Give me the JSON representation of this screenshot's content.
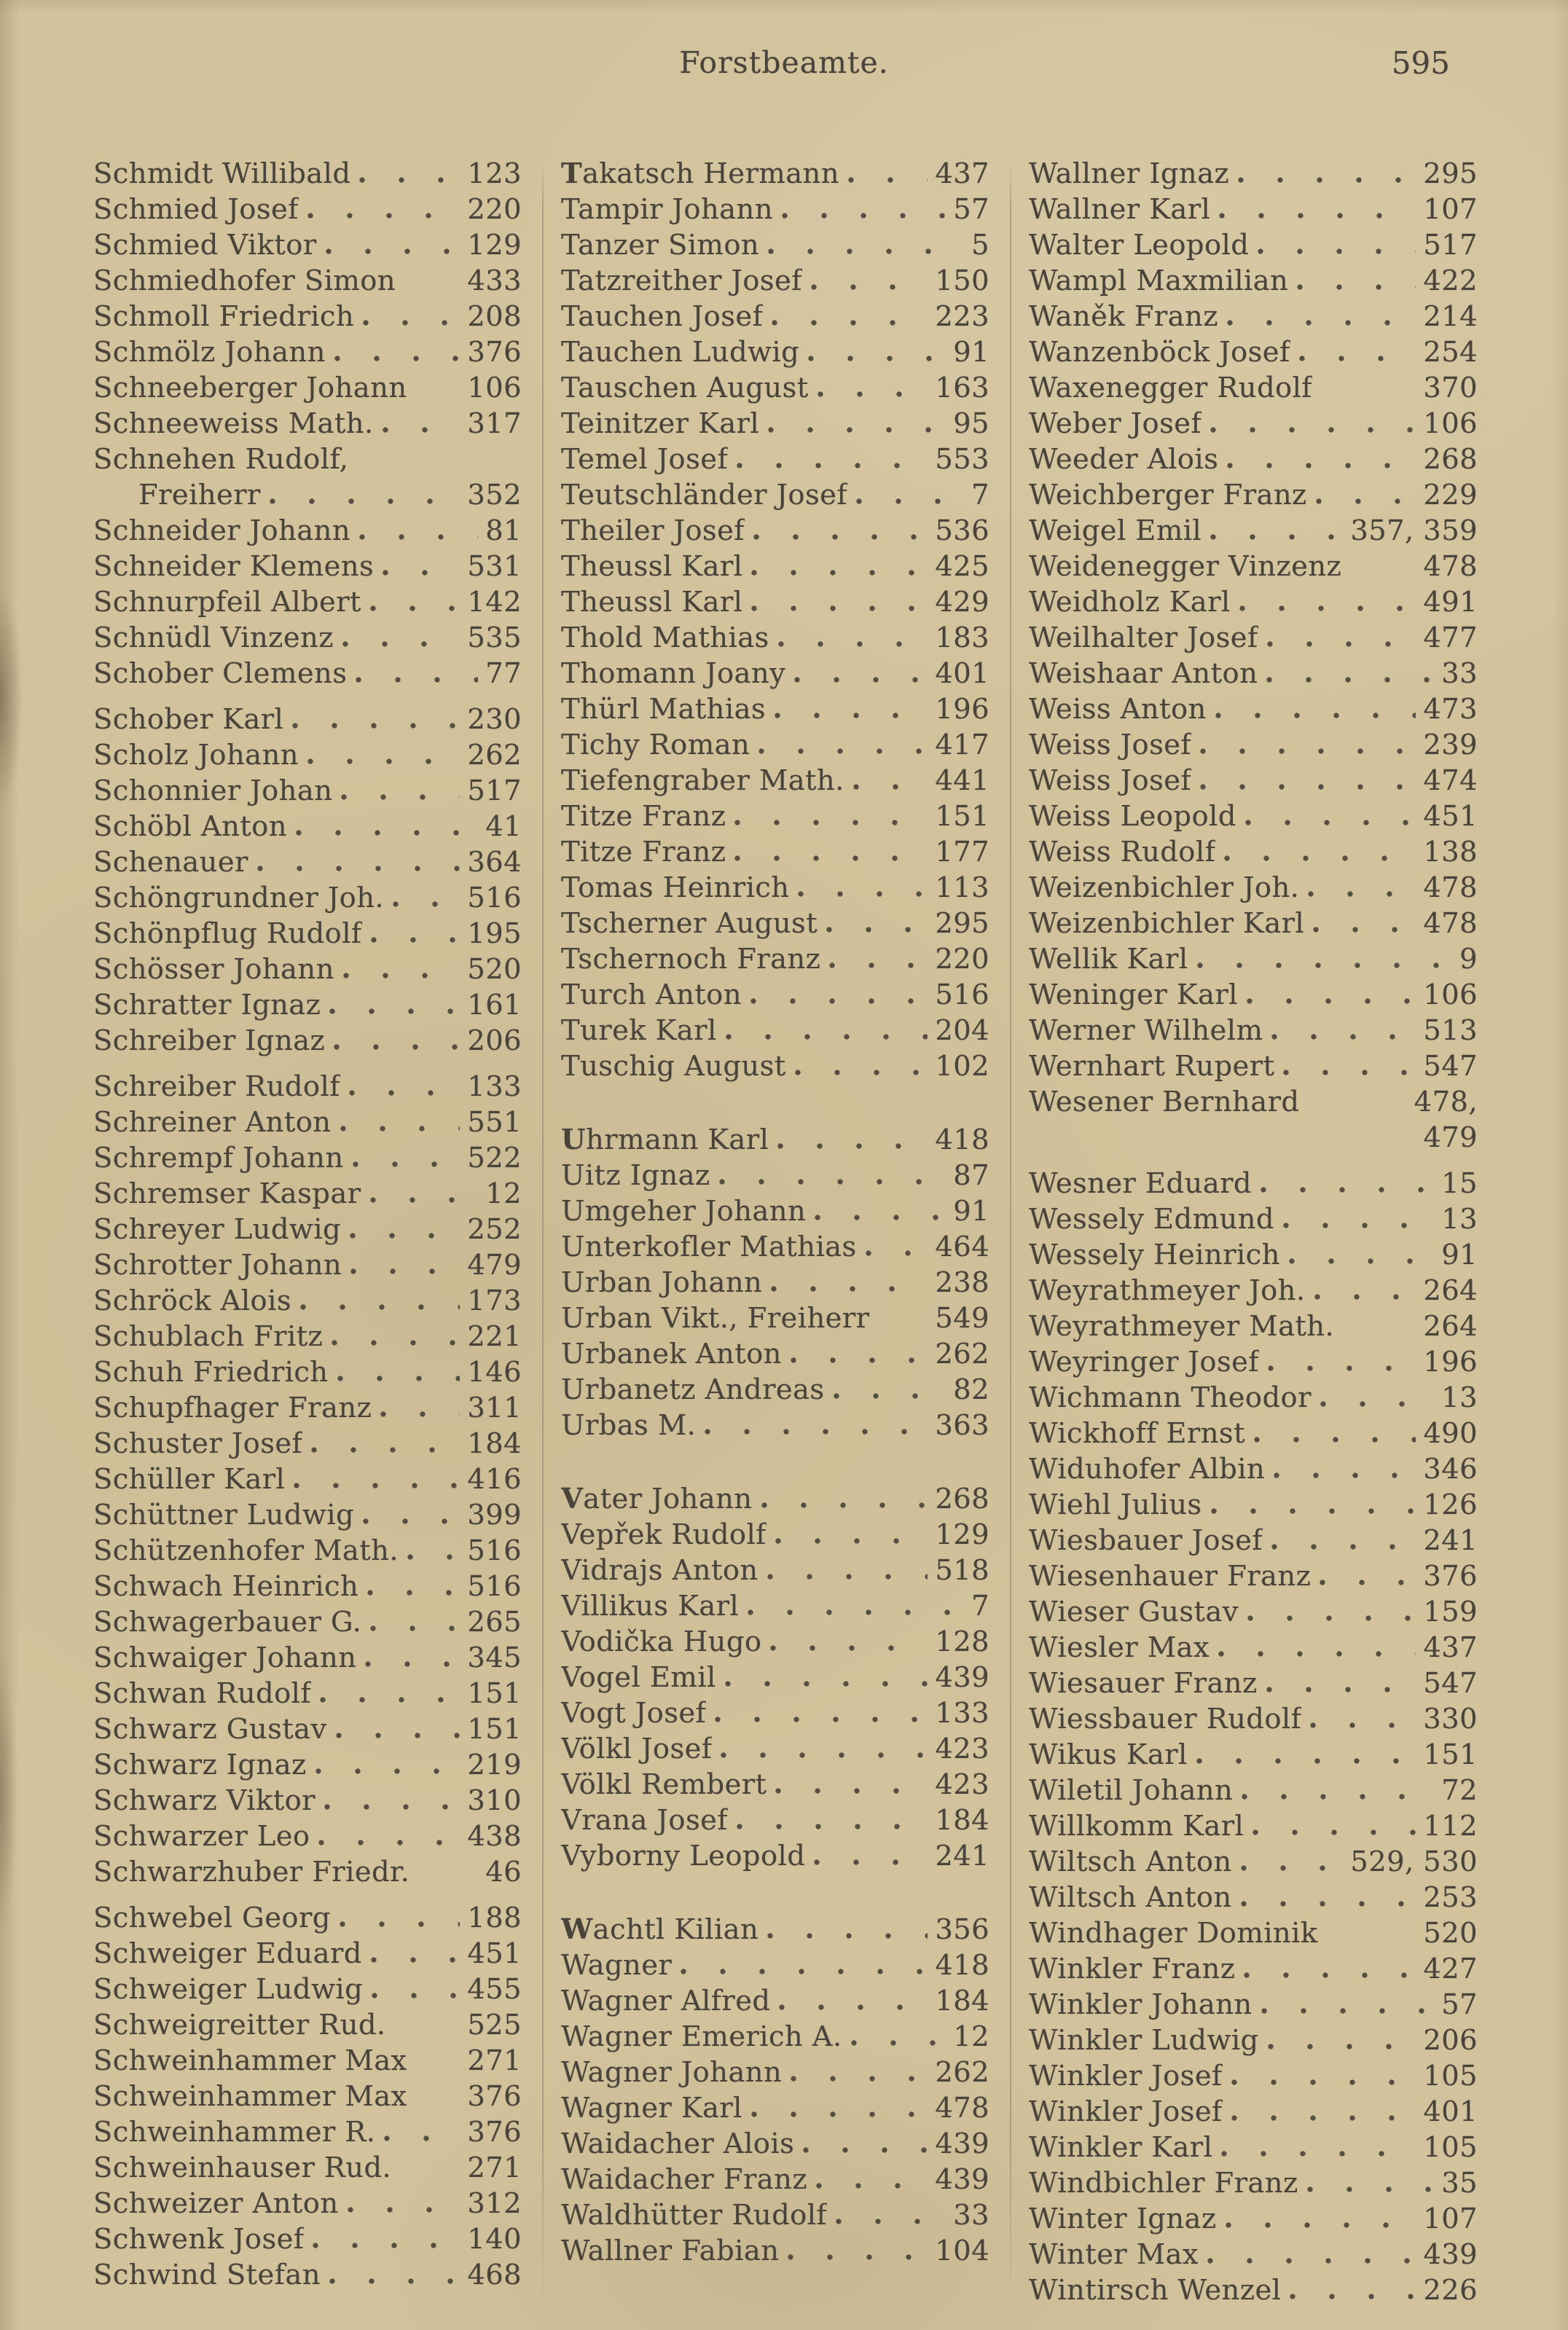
{
  "header": {
    "title": "Forstbeamte.",
    "page_number": "595"
  },
  "colors": {
    "paper": "#d2c39c",
    "ink": "#49443b",
    "divider": "#8d8168"
  },
  "columns": [
    {
      "entries": [
        {
          "name": "Schmidt Willibald",
          "page": "123"
        },
        {
          "name": "Schmied Josef",
          "page": "220"
        },
        {
          "name": "Schmied Viktor",
          "page": "129"
        },
        {
          "name": "Schmiedhofer Simon",
          "page": "433",
          "no_leader": true
        },
        {
          "name": "Schmoll Friedrich",
          "page": "208"
        },
        {
          "name": "Schmölz Johann",
          "page": "376"
        },
        {
          "name": "Schneeberger Johann",
          "page": "106",
          "no_leader": true
        },
        {
          "name": "Schneeweiss Math.",
          "page": "317"
        },
        {
          "name": "Schnehen Rudolf,",
          "page": "",
          "no_leader": true
        },
        {
          "name": "Freiherr",
          "page": "352",
          "indent": true
        },
        {
          "name": "Schneider Johann",
          "page": "81"
        },
        {
          "name": "Schneider Klemens",
          "page": "531"
        },
        {
          "name": "Schnurpfeil Albert",
          "page": "142"
        },
        {
          "name": "Schnüdl Vinzenz",
          "page": "535"
        },
        {
          "name": "Schober Clemens",
          "page": "77"
        },
        {
          "name": "Schober Karl",
          "page": "230",
          "gap": "small"
        },
        {
          "name": "Scholz Johann",
          "page": "262"
        },
        {
          "name": "Schonnier Johan",
          "page": "517"
        },
        {
          "name": "Schöbl Anton",
          "page": "41"
        },
        {
          "name": "Schenauer",
          "page": "364"
        },
        {
          "name": "Schöngrundner Joh.",
          "page": "516"
        },
        {
          "name": "Schönpflug Rudolf",
          "page": "195"
        },
        {
          "name": "Schösser Johann",
          "page": "520"
        },
        {
          "name": "Schratter Ignaz",
          "page": "161"
        },
        {
          "name": "Schreiber Ignaz",
          "page": "206"
        },
        {
          "name": "Schreiber Rudolf",
          "page": "133",
          "gap": "small"
        },
        {
          "name": "Schreiner Anton",
          "page": "551"
        },
        {
          "name": "Schrempf Johann",
          "page": "522"
        },
        {
          "name": "Schremser Kaspar",
          "page": "12"
        },
        {
          "name": "Schreyer Ludwig",
          "page": "252"
        },
        {
          "name": "Schrotter Johann",
          "page": "479"
        },
        {
          "name": "Schröck Alois",
          "page": "173"
        },
        {
          "name": "Schublach Fritz",
          "page": "221"
        },
        {
          "name": "Schuh Friedrich",
          "page": "146"
        },
        {
          "name": "Schupfhager Franz",
          "page": "311"
        },
        {
          "name": "Schuster Josef",
          "page": "184"
        },
        {
          "name": "Schüller Karl",
          "page": "416"
        },
        {
          "name": "Schüttner Ludwig",
          "page": "399"
        },
        {
          "name": "Schützenhofer Math.",
          "page": "516"
        },
        {
          "name": "Schwach Heinrich",
          "page": "516"
        },
        {
          "name": "Schwagerbauer G.",
          "page": "265"
        },
        {
          "name": "Schwaiger Johann",
          "page": "345"
        },
        {
          "name": "Schwan Rudolf",
          "page": "151"
        },
        {
          "name": "Schwarz Gustav",
          "page": "151"
        },
        {
          "name": "Schwarz Ignaz",
          "page": "219"
        },
        {
          "name": "Schwarz Viktor",
          "page": "310"
        },
        {
          "name": "Schwarzer Leo",
          "page": "438"
        },
        {
          "name": "Schwarzhuber Friedr.",
          "page": "46",
          "no_leader": true
        },
        {
          "name": "Schwebel Georg",
          "page": "188",
          "gap": "small"
        },
        {
          "name": "Schweiger Eduard",
          "page": "451"
        },
        {
          "name": "Schweiger Ludwig",
          "page": "455"
        },
        {
          "name": "Schweigreitter Rud.",
          "page": "525",
          "no_leader": true
        },
        {
          "name": "Schweinhammer Max",
          "page": "271",
          "no_leader": true
        },
        {
          "name": "Schweinhammer Max",
          "page": "376",
          "no_leader": true
        },
        {
          "name": "Schweinhammer R.",
          "page": "376"
        },
        {
          "name": "Schweinhauser Rud.",
          "page": "271",
          "no_leader": true
        },
        {
          "name": "Schweizer Anton",
          "page": "312"
        },
        {
          "name": "Schwenk Josef",
          "page": "140"
        },
        {
          "name": "Schwind Stefan",
          "page": "468"
        }
      ]
    },
    {
      "entries": [
        {
          "name": "Takatsch Hermann",
          "page": "437",
          "bold_initial": true
        },
        {
          "name": "Tampir Johann",
          "page": "57"
        },
        {
          "name": "Tanzer Simon",
          "page": "5"
        },
        {
          "name": "Tatzreither Josef",
          "page": "150"
        },
        {
          "name": "Tauchen Josef",
          "page": "223"
        },
        {
          "name": "Tauchen Ludwig",
          "page": "91"
        },
        {
          "name": "Tauschen August",
          "page": "163"
        },
        {
          "name": "Teinitzer Karl",
          "page": "95"
        },
        {
          "name": "Temel Josef",
          "page": "553"
        },
        {
          "name": "Teutschländer Josef",
          "page": "7"
        },
        {
          "name": "Theiler Josef",
          "page": "536"
        },
        {
          "name": "Theussl Karl",
          "page": "425"
        },
        {
          "name": "Theussl Karl",
          "page": "429"
        },
        {
          "name": "Thold Mathias",
          "page": "183"
        },
        {
          "name": "Thomann Joany",
          "page": "401"
        },
        {
          "name": "Thürl Mathias",
          "page": "196"
        },
        {
          "name": "Tichy Roman",
          "page": "417"
        },
        {
          "name": "Tiefengraber Math.",
          "page": "441"
        },
        {
          "name": "Titze Franz",
          "page": "151"
        },
        {
          "name": "Titze Franz",
          "page": "177"
        },
        {
          "name": "Tomas Heinrich",
          "page": "113"
        },
        {
          "name": "Tscherner August",
          "page": "295"
        },
        {
          "name": "Tschernoch Franz",
          "page": "220"
        },
        {
          "name": "Turch Anton",
          "page": "516"
        },
        {
          "name": "Turek Karl",
          "page": "204"
        },
        {
          "name": "Tuschig August",
          "page": "102"
        },
        {
          "name": "Uhrmann Karl",
          "page": "418",
          "bold_initial": true,
          "gap": "large"
        },
        {
          "name": "Uitz Ignaz",
          "page": "87"
        },
        {
          "name": "Umgeher Johann",
          "page": "91"
        },
        {
          "name": "Unterkofler Mathias",
          "page": "464"
        },
        {
          "name": "Urban Johann",
          "page": "238"
        },
        {
          "name": "Urban Vikt., Freiherr",
          "page": "549",
          "no_leader": true
        },
        {
          "name": "Urbanek Anton",
          "page": "262"
        },
        {
          "name": "Urbanetz Andreas",
          "page": "82"
        },
        {
          "name": "Urbas M.",
          "page": "363"
        },
        {
          "name": "Vater Johann",
          "page": "268",
          "bold_initial": true,
          "gap": "large"
        },
        {
          "name": "Vepřek Rudolf",
          "page": "129"
        },
        {
          "name": "Vidrajs Anton",
          "page": "518"
        },
        {
          "name": "Villikus Karl",
          "page": "7"
        },
        {
          "name": "Vodička Hugo",
          "page": "128"
        },
        {
          "name": "Vogel Emil",
          "page": "439"
        },
        {
          "name": "Vogt Josef",
          "page": "133"
        },
        {
          "name": "Völkl Josef",
          "page": "423"
        },
        {
          "name": "Völkl Rembert",
          "page": "423"
        },
        {
          "name": "Vrana Josef",
          "page": "184"
        },
        {
          "name": "Vyborny Leopold",
          "page": "241"
        },
        {
          "name": "Wachtl Kilian",
          "page": "356",
          "bold_initial": true,
          "gap": "large"
        },
        {
          "name": "Wagner",
          "page": "418"
        },
        {
          "name": "Wagner Alfred",
          "page": "184"
        },
        {
          "name": "Wagner Emerich A.",
          "page": "12"
        },
        {
          "name": "Wagner Johann",
          "page": "262"
        },
        {
          "name": "Wagner Karl",
          "page": "478"
        },
        {
          "name": "Waidacher Alois",
          "page": "439"
        },
        {
          "name": "Waidacher Franz",
          "page": "439"
        },
        {
          "name": "Waldhütter Rudolf",
          "page": "33"
        },
        {
          "name": "Wallner Fabian",
          "page": "104"
        }
      ]
    },
    {
      "entries": [
        {
          "name": "Wallner Ignaz",
          "page": "295"
        },
        {
          "name": "Wallner Karl",
          "page": "107"
        },
        {
          "name": "Walter Leopold",
          "page": "517"
        },
        {
          "name": "Wampl Maxmilian",
          "page": "422"
        },
        {
          "name": "Waněk Franz",
          "page": "214"
        },
        {
          "name": "Wanzenböck Josef",
          "page": "254"
        },
        {
          "name": "Waxenegger Rudolf",
          "page": "370",
          "no_leader": true
        },
        {
          "name": "Weber Josef",
          "page": "106"
        },
        {
          "name": "Weeder Alois",
          "page": "268"
        },
        {
          "name": "Weichberger Franz",
          "page": "229"
        },
        {
          "name": "Weigel Emil",
          "page": "357, 359"
        },
        {
          "name": "Weidenegger Vinzenz",
          "page": "478",
          "no_leader": true
        },
        {
          "name": "Weidholz Karl",
          "page": "491"
        },
        {
          "name": "Weilhalter Josef",
          "page": "477"
        },
        {
          "name": "Weishaar Anton",
          "page": "33"
        },
        {
          "name": "Weiss Anton",
          "page": "473"
        },
        {
          "name": "Weiss Josef",
          "page": "239"
        },
        {
          "name": "Weiss Josef",
          "page": "474"
        },
        {
          "name": "Weiss Leopold",
          "page": "451"
        },
        {
          "name": "Weiss Rudolf",
          "page": "138"
        },
        {
          "name": "Weizenbichler Joh.",
          "page": "478"
        },
        {
          "name": "Weizenbichler Karl",
          "page": "478"
        },
        {
          "name": "Wellik Karl",
          "page": "9"
        },
        {
          "name": "Weninger Karl",
          "page": "106"
        },
        {
          "name": "Werner Wilhelm",
          "page": "513"
        },
        {
          "name": "Wernhart Rupert",
          "page": "547"
        },
        {
          "name": "Wesener Bernhard",
          "page": "478,",
          "no_leader": true
        },
        {
          "name": "",
          "page": "479",
          "no_leader": true
        },
        {
          "name": "Wesner Eduard",
          "page": "15",
          "gap": "small"
        },
        {
          "name": "Wessely Edmund",
          "page": "13"
        },
        {
          "name": "Wessely Heinrich",
          "page": "91"
        },
        {
          "name": "Weyrathmeyer Joh.",
          "page": "264"
        },
        {
          "name": "Weyrathmeyer Math.",
          "page": "264",
          "no_leader": true
        },
        {
          "name": "Weyringer Josef",
          "page": "196"
        },
        {
          "name": "Wichmann Theodor",
          "page": "13"
        },
        {
          "name": "Wickhoff Ernst",
          "page": "490"
        },
        {
          "name": "Widuhofer Albin",
          "page": "346"
        },
        {
          "name": "Wiehl Julius",
          "page": "126"
        },
        {
          "name": "Wiesbauer Josef",
          "page": "241"
        },
        {
          "name": "Wiesenhauer Franz",
          "page": "376"
        },
        {
          "name": "Wieser Gustav",
          "page": "159"
        },
        {
          "name": "Wiesler Max",
          "page": "437"
        },
        {
          "name": "Wiesauer Franz",
          "page": "547"
        },
        {
          "name": "Wiessbauer Rudolf",
          "page": "330"
        },
        {
          "name": "Wikus Karl",
          "page": "151"
        },
        {
          "name": "Wiletil Johann",
          "page": "72"
        },
        {
          "name": "Willkomm Karl",
          "page": "112"
        },
        {
          "name": "Wiltsch Anton",
          "page": "529, 530"
        },
        {
          "name": "Wiltsch Anton",
          "page": "253"
        },
        {
          "name": "Windhager Dominik",
          "page": "520",
          "no_leader": true
        },
        {
          "name": "Winkler Franz",
          "page": "427"
        },
        {
          "name": "Winkler Johann",
          "page": "57"
        },
        {
          "name": "Winkler Ludwig",
          "page": "206"
        },
        {
          "name": "Winkler Josef",
          "page": "105"
        },
        {
          "name": "Winkler Josef",
          "page": "401"
        },
        {
          "name": "Winkler Karl",
          "page": "105"
        },
        {
          "name": "Windbichler Franz",
          "page": "35"
        },
        {
          "name": "Winter Ignaz",
          "page": "107"
        },
        {
          "name": "Winter Max",
          "page": "439"
        },
        {
          "name": "Wintirsch Wenzel",
          "page": "226"
        }
      ]
    }
  ]
}
